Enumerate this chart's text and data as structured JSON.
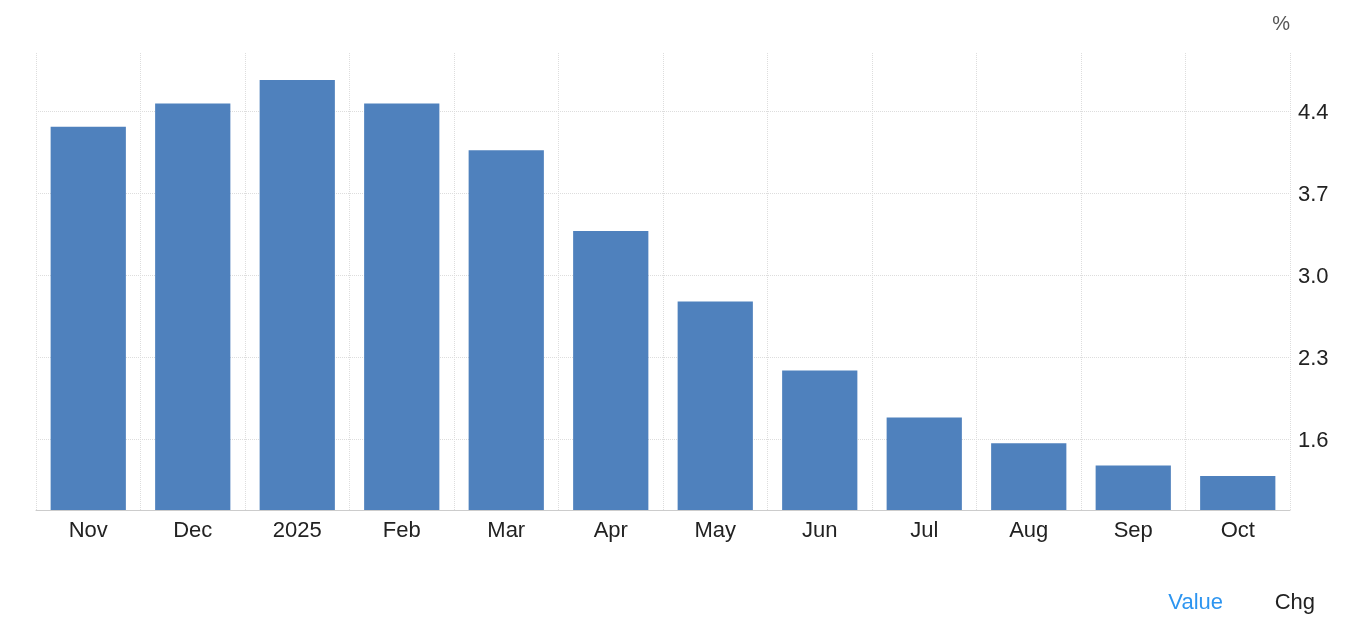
{
  "chart_data": {
    "type": "bar",
    "ylabel": "%",
    "categories": [
      "Nov",
      "Dec",
      "2025",
      "Feb",
      "Mar",
      "Apr",
      "May",
      "Jun",
      "Jul",
      "Aug",
      "Sep",
      "Oct"
    ],
    "values": [
      4.27,
      4.47,
      4.67,
      4.47,
      4.07,
      3.38,
      2.78,
      2.19,
      1.79,
      1.57,
      1.38,
      1.29
    ],
    "color": "#4f81bd",
    "ylim": [
      1.0,
      4.9
    ],
    "yticks": [
      1.6,
      2.3,
      {
        "value": 3,
        "label": "3.0"
      },
      3.7,
      4.4
    ],
    "grid": true,
    "annotations": [
      "Value",
      "Chg"
    ]
  }
}
